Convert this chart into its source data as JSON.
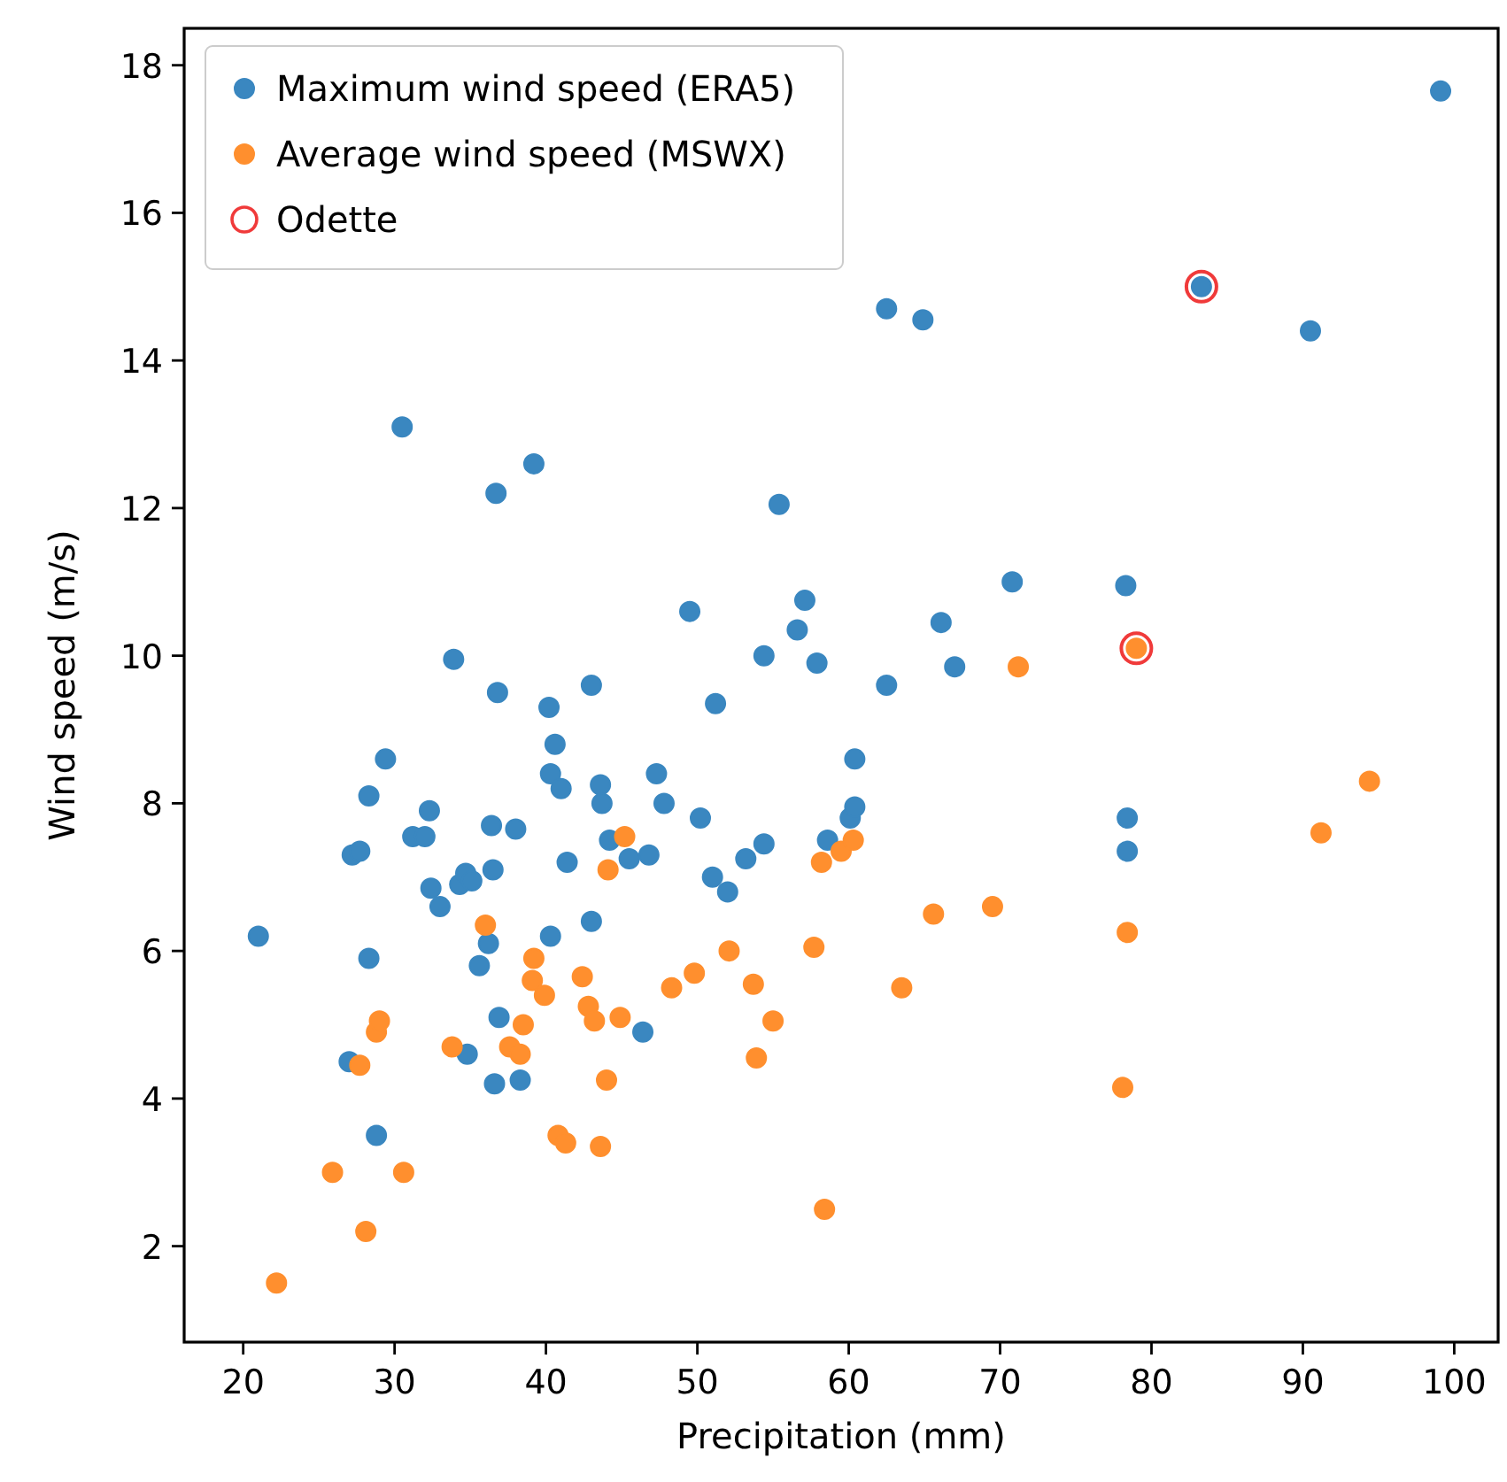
{
  "chart_data": {
    "type": "scatter",
    "xlabel": "Precipitation (mm)",
    "ylabel": "Wind speed (m/s)",
    "xlim": [
      16.1,
      102.9
    ],
    "ylim": [
      0.7,
      18.5
    ],
    "xticks": [
      20,
      30,
      40,
      50,
      60,
      70,
      80,
      90,
      100
    ],
    "yticks": [
      2,
      4,
      6,
      8,
      10,
      12,
      14,
      16,
      18
    ],
    "legend": "top left",
    "marker": "circle",
    "series": [
      {
        "name": "Maximum wind speed (ERA5)",
        "color": "#3a87c0",
        "x": [
          21,
          27,
          27.2,
          27.7,
          28.3,
          28.3,
          28.8,
          29.4,
          30.5,
          31.2,
          32,
          32.3,
          32.4,
          33,
          33.9,
          34.3,
          34.7,
          34.8,
          35.1,
          35.6,
          36.2,
          36.4,
          36.5,
          36.6,
          36.7,
          36.8,
          36.9,
          38,
          38.3,
          39.2,
          40.2,
          40.3,
          40.3,
          40.6,
          41,
          41.4,
          43,
          43,
          43.6,
          43.7,
          44.2,
          45.5,
          46.4,
          46.8,
          47.3,
          47.8,
          49.5,
          50.2,
          51,
          51.2,
          52,
          53.2,
          54.4,
          54.4,
          55.4,
          56.6,
          57.1,
          57.9,
          58.6,
          60.1,
          60.4,
          60.4,
          62.5,
          62.5,
          64.9,
          66.1,
          67,
          70.8,
          78.3,
          78.4,
          78.4,
          83.3,
          90.5,
          99.1
        ],
        "values": [
          6.2,
          4.5,
          7.3,
          7.35,
          8.1,
          5.9,
          3.5,
          8.6,
          13.1,
          7.55,
          7.55,
          7.9,
          6.85,
          6.6,
          9.95,
          6.9,
          7.05,
          4.6,
          6.95,
          5.8,
          6.1,
          7.7,
          7.1,
          4.2,
          12.2,
          9.5,
          5.1,
          7.65,
          4.25,
          12.6,
          9.3,
          8.4,
          6.2,
          8.8,
          8.2,
          7.2,
          6.4,
          9.6,
          8.25,
          8,
          7.5,
          7.25,
          4.9,
          7.3,
          8.4,
          8,
          10.6,
          7.8,
          7,
          9.35,
          6.8,
          7.25,
          7.45,
          10,
          12.05,
          10.35,
          10.75,
          9.9,
          7.5,
          7.8,
          7.95,
          8.6,
          14.7,
          9.6,
          14.55,
          10.45,
          9.85,
          11,
          10.95,
          7.8,
          7.35,
          15,
          14.4,
          17.65
        ]
      },
      {
        "name": "Average wind speed (MSWX)",
        "color": "#ff8f2e",
        "x": [
          22.2,
          25.9,
          27.7,
          28.1,
          28.8,
          29,
          30.6,
          33.8,
          36,
          37.6,
          38.3,
          38.5,
          39.1,
          39.2,
          39.9,
          40.8,
          41.3,
          42.4,
          42.8,
          43.2,
          43.6,
          44,
          44.1,
          44.9,
          45.2,
          48.3,
          49.8,
          52.1,
          53.7,
          53.9,
          55,
          57.7,
          58.2,
          58.4,
          59.5,
          60.3,
          63.5,
          65.6,
          69.5,
          71.2,
          78.1,
          78.4,
          79,
          91.2,
          94.4
        ],
        "values": [
          1.5,
          3,
          4.45,
          2.2,
          4.9,
          5.05,
          3,
          4.7,
          6.35,
          4.7,
          4.6,
          5,
          5.6,
          5.9,
          5.4,
          3.5,
          3.4,
          5.65,
          5.25,
          5.05,
          3.35,
          4.25,
          7.1,
          5.1,
          7.55,
          5.5,
          5.7,
          6,
          5.55,
          4.55,
          5.05,
          6.05,
          7.2,
          2.5,
          7.35,
          7.5,
          5.5,
          6.5,
          6.6,
          9.85,
          4.15,
          6.25,
          10.1,
          7.6,
          8.3
        ]
      },
      {
        "name": "Odette",
        "color": "#f03a3a",
        "x": [
          83.3,
          79
        ],
        "values": [
          15,
          10.1
        ]
      }
    ]
  }
}
